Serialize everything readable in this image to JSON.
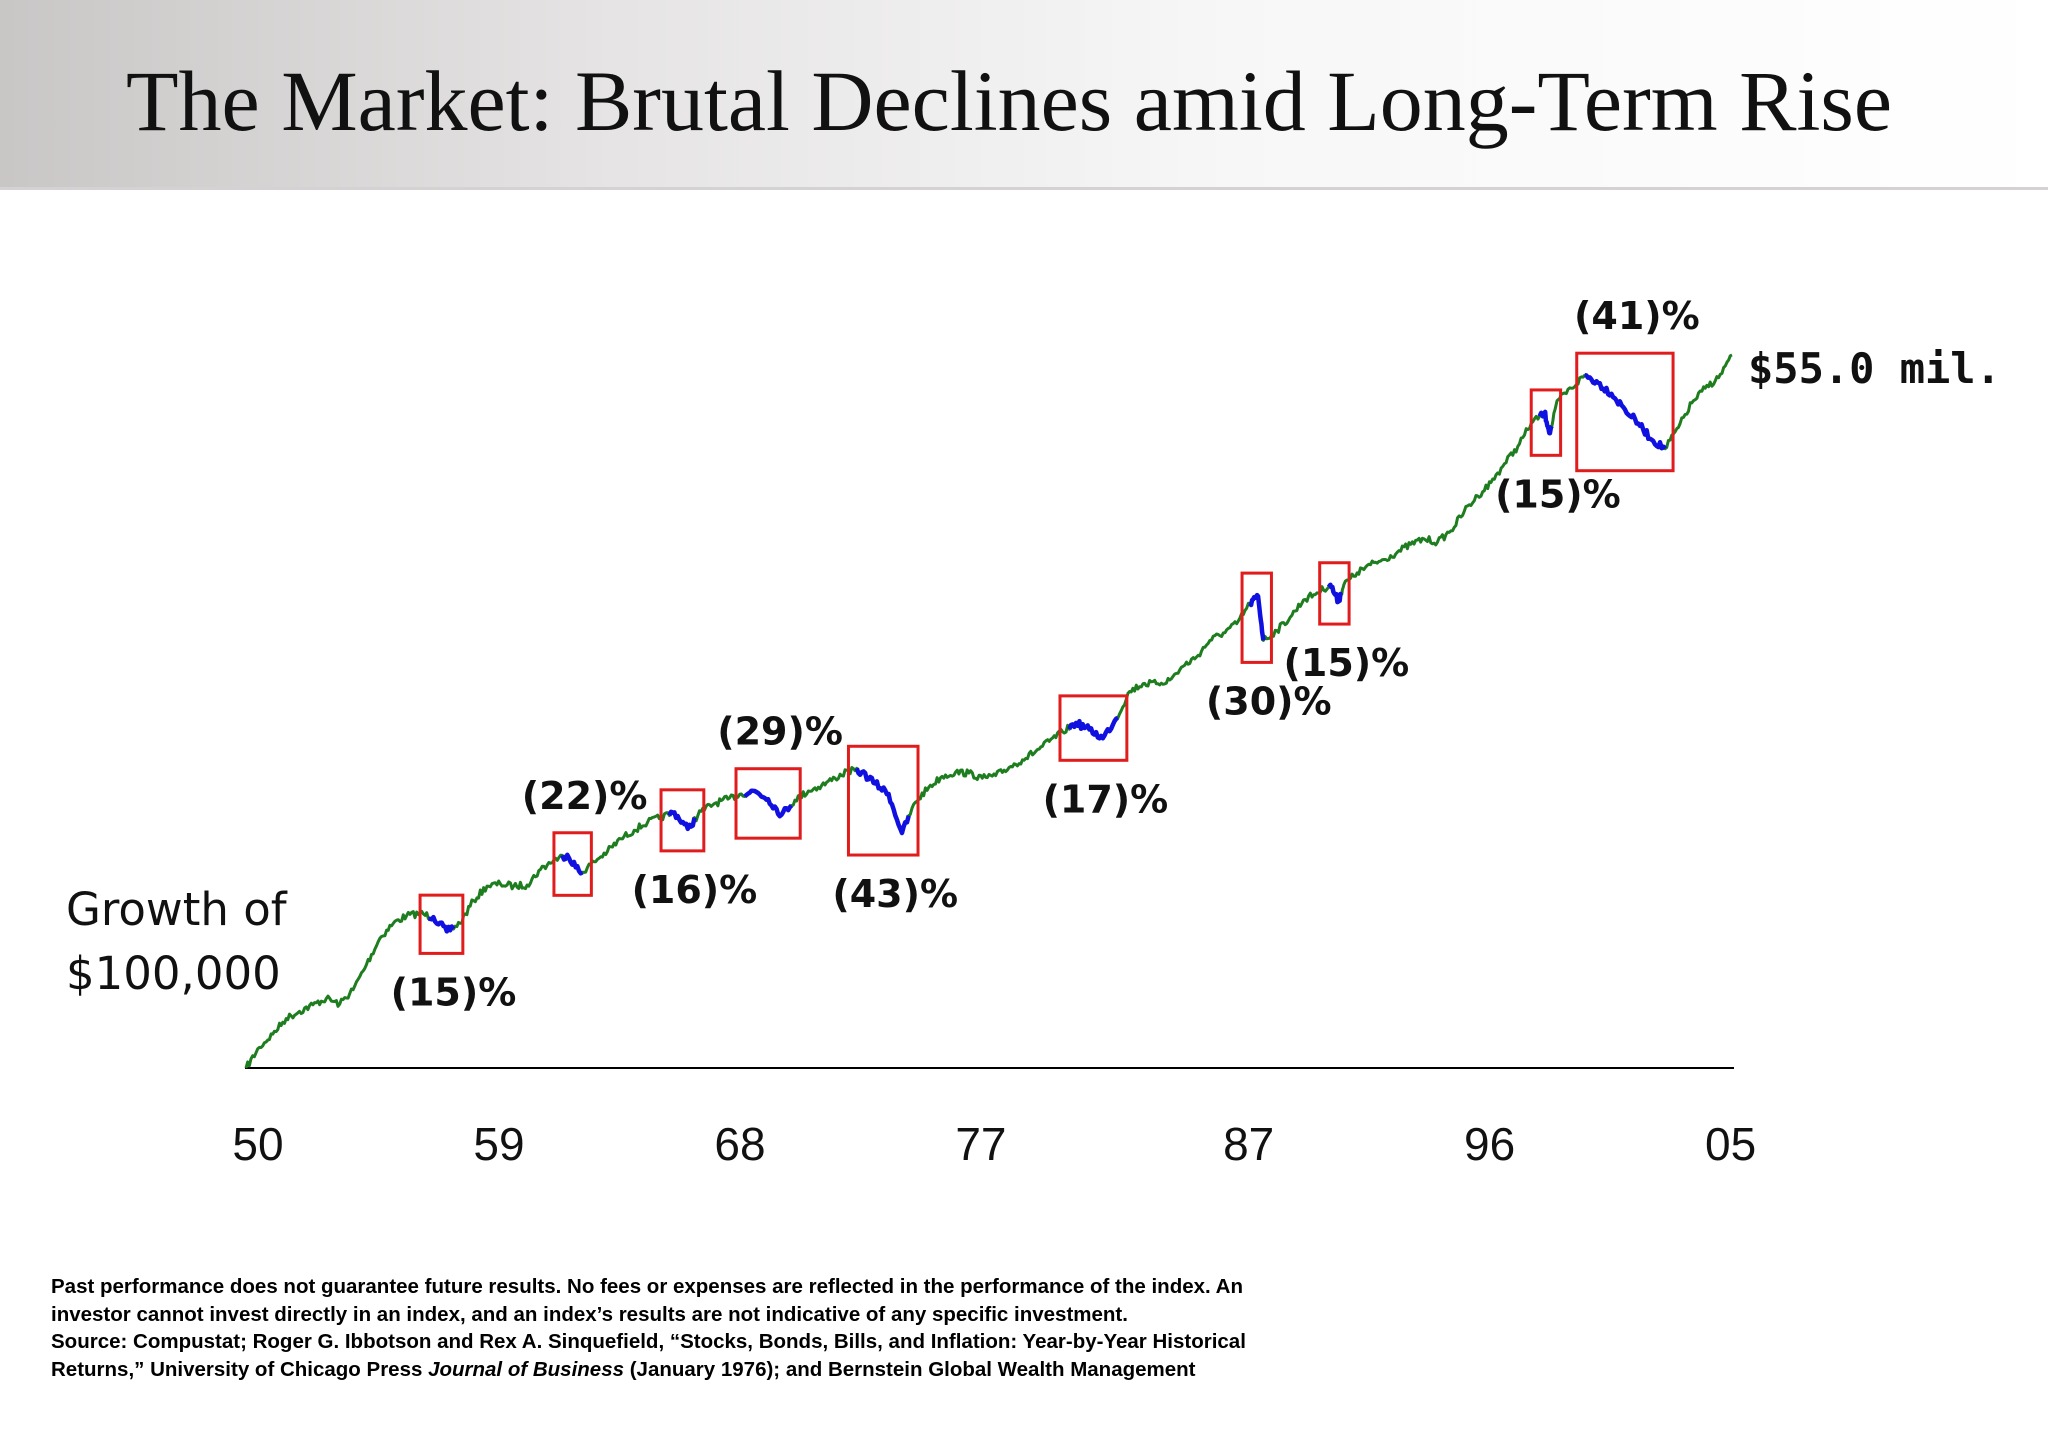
{
  "title": "The Market: Brutal Declines amid Long-Term Rise",
  "growth_label": [
    "Growth of",
    "$100,000"
  ],
  "end_value_label": "$55.0 mil.",
  "footnote": {
    "line1": "Past performance does not guarantee future results. No fees or expenses are reflected in the performance of the index. An",
    "line2": "investor cannot invest directly in an index, and an index’s results are not indicative of any specific investment.",
    "line3": "Source: Compustat; Roger G. Ibbotson and Rex A. Sinquefield, “Stocks, Bonds, Bills, and Inflation: Year-by-Year Historical",
    "line4_pre": "Returns,” University of Chicago Press ",
    "line4_italic": "Journal of Business",
    "line4_post": " (January 1976); and Bernstein Global Wealth Management"
  },
  "colors": {
    "line": "#1e7d1e",
    "decline": "#1010e0",
    "box": "#e01c1c",
    "axis": "#000000",
    "text": "#111111"
  },
  "chart_data": {
    "type": "line",
    "title": "The Market: Brutal Declines amid Long-Term Rise",
    "ylabel": "Growth of $100,000",
    "y_scale": "log",
    "y_units": "$",
    "x_ticks": [
      "50",
      "59",
      "68",
      "77",
      "87",
      "96",
      "05"
    ],
    "x_tick_years": [
      1950,
      1959,
      1968,
      1977,
      1987,
      1996,
      2005
    ],
    "xlim": [
      1950,
      2005.5
    ],
    "ylim": [
      100000,
      55000000
    ],
    "y_axis_values_shown": false,
    "end_value": 55000000,
    "end_value_label": "$55.0 mil.",
    "series": [
      {
        "points": [
          [
            1950.0,
            100000
          ],
          [
            1950.5,
            120000
          ],
          [
            1951.0,
            135000
          ],
          [
            1951.5,
            155000
          ],
          [
            1952.0,
            165000
          ],
          [
            1952.5,
            175000
          ],
          [
            1953.0,
            185000
          ],
          [
            1953.5,
            176000
          ],
          [
            1954.0,
            200000
          ],
          [
            1954.5,
            250000
          ],
          [
            1955.0,
            315000
          ],
          [
            1955.5,
            360000
          ],
          [
            1956.0,
            385000
          ],
          [
            1956.5,
            393000
          ],
          [
            1957.0,
            380000
          ],
          [
            1957.5,
            335000
          ],
          [
            1958.0,
            360000
          ],
          [
            1958.5,
            440000
          ],
          [
            1959.0,
            500000
          ],
          [
            1959.5,
            510000
          ],
          [
            1960.0,
            500000
          ],
          [
            1960.5,
            505000
          ],
          [
            1961.0,
            580000
          ],
          [
            1961.5,
            630000
          ],
          [
            1962.0,
            660000
          ],
          [
            1962.5,
            560000
          ],
          [
            1963.0,
            620000
          ],
          [
            1963.5,
            680000
          ],
          [
            1964.0,
            760000
          ],
          [
            1964.5,
            820000
          ],
          [
            1965.0,
            880000
          ],
          [
            1965.5,
            920000
          ],
          [
            1966.0,
            960000
          ],
          [
            1966.5,
            830000
          ],
          [
            1967.0,
            970000
          ],
          [
            1967.5,
            1040000
          ],
          [
            1968.0,
            1080000
          ],
          [
            1968.5,
            1130000
          ],
          [
            1969.0,
            1160000
          ],
          [
            1969.5,
            1080000
          ],
          [
            1970.0,
            940000
          ],
          [
            1970.5,
            1070000
          ],
          [
            1971.0,
            1160000
          ],
          [
            1971.5,
            1220000
          ],
          [
            1972.0,
            1300000
          ],
          [
            1972.5,
            1390000
          ],
          [
            1973.0,
            1370000
          ],
          [
            1973.5,
            1240000
          ],
          [
            1974.0,
            1130000
          ],
          [
            1974.5,
            800000
          ],
          [
            1975.0,
            1050000
          ],
          [
            1975.5,
            1200000
          ],
          [
            1976.0,
            1320000
          ],
          [
            1976.5,
            1370000
          ],
          [
            1977.0,
            1360000
          ],
          [
            1977.5,
            1300000
          ],
          [
            1978.0,
            1330000
          ],
          [
            1978.5,
            1430000
          ],
          [
            1979.0,
            1530000
          ],
          [
            1979.5,
            1650000
          ],
          [
            1980.0,
            1800000
          ],
          [
            1980.5,
            1960000
          ],
          [
            1981.0,
            2120000
          ],
          [
            1981.5,
            2000000
          ],
          [
            1982.0,
            1850000
          ],
          [
            1982.5,
            2200000
          ],
          [
            1983.0,
            2800000
          ],
          [
            1983.5,
            3000000
          ],
          [
            1984.0,
            3000000
          ],
          [
            1984.5,
            3100000
          ],
          [
            1985.0,
            3500000
          ],
          [
            1985.5,
            3800000
          ],
          [
            1986.0,
            4400000
          ],
          [
            1986.5,
            4700000
          ],
          [
            1987.0,
            5100000
          ],
          [
            1987.5,
            6100000
          ],
          [
            1987.8,
            6500000
          ],
          [
            1988.0,
            4400000
          ],
          [
            1988.5,
            4800000
          ],
          [
            1989.0,
            5400000
          ],
          [
            1989.5,
            6300000
          ],
          [
            1990.0,
            6700000
          ],
          [
            1990.5,
            7200000
          ],
          [
            1990.8,
            6200000
          ],
          [
            1991.0,
            7200000
          ],
          [
            1991.5,
            8000000
          ],
          [
            1992.0,
            8600000
          ],
          [
            1992.5,
            9000000
          ],
          [
            1993.0,
            9600000
          ],
          [
            1993.5,
            10300000
          ],
          [
            1994.0,
            10800000
          ],
          [
            1994.5,
            10500000
          ],
          [
            1995.0,
            11600000
          ],
          [
            1995.5,
            13800000
          ],
          [
            1996.0,
            15800000
          ],
          [
            1996.5,
            17800000
          ],
          [
            1997.0,
            21000000
          ],
          [
            1997.5,
            24500000
          ],
          [
            1998.0,
            30000000
          ],
          [
            1998.5,
            33000000
          ],
          [
            1998.7,
            27500000
          ],
          [
            1999.0,
            37000000
          ],
          [
            1999.5,
            41000000
          ],
          [
            2000.0,
            46000000
          ],
          [
            2000.5,
            43000000
          ],
          [
            2001.0,
            39000000
          ],
          [
            2001.5,
            34000000
          ],
          [
            2002.0,
            30000000
          ],
          [
            2002.5,
            26000000
          ],
          [
            2003.0,
            24000000
          ],
          [
            2003.5,
            29000000
          ],
          [
            2004.0,
            36000000
          ],
          [
            2004.5,
            41000000
          ],
          [
            2005.0,
            45000000
          ],
          [
            2005.5,
            55000000
          ]
        ]
      }
    ],
    "declines": [
      {
        "label": "(15)%",
        "start": 1956.8,
        "end": 1957.8,
        "label_pos": "below"
      },
      {
        "label": "(22)%",
        "start": 1961.8,
        "end": 1962.6,
        "label_pos": "above"
      },
      {
        "label": "(16)%",
        "start": 1965.8,
        "end": 1966.8,
        "label_pos": "below"
      },
      {
        "label": "(29)%",
        "start": 1968.6,
        "end": 1970.4,
        "label_pos": "above"
      },
      {
        "label": "(43)%",
        "start": 1972.8,
        "end": 1974.8,
        "label_pos": "below"
      },
      {
        "label": "(17)%",
        "start": 1980.7,
        "end": 1982.6,
        "label_pos": "below"
      },
      {
        "label": "(30)%",
        "start": 1987.5,
        "end": 1988.0,
        "label_pos": "below"
      },
      {
        "label": "(15)%",
        "start": 1990.4,
        "end": 1990.9,
        "label_pos": "below"
      },
      {
        "label": "(15)%",
        "start": 1998.3,
        "end": 1998.8,
        "label_pos": "below"
      },
      {
        "label": "(41)%",
        "start": 2000.0,
        "end": 2003.0,
        "label_pos": "above"
      }
    ]
  }
}
